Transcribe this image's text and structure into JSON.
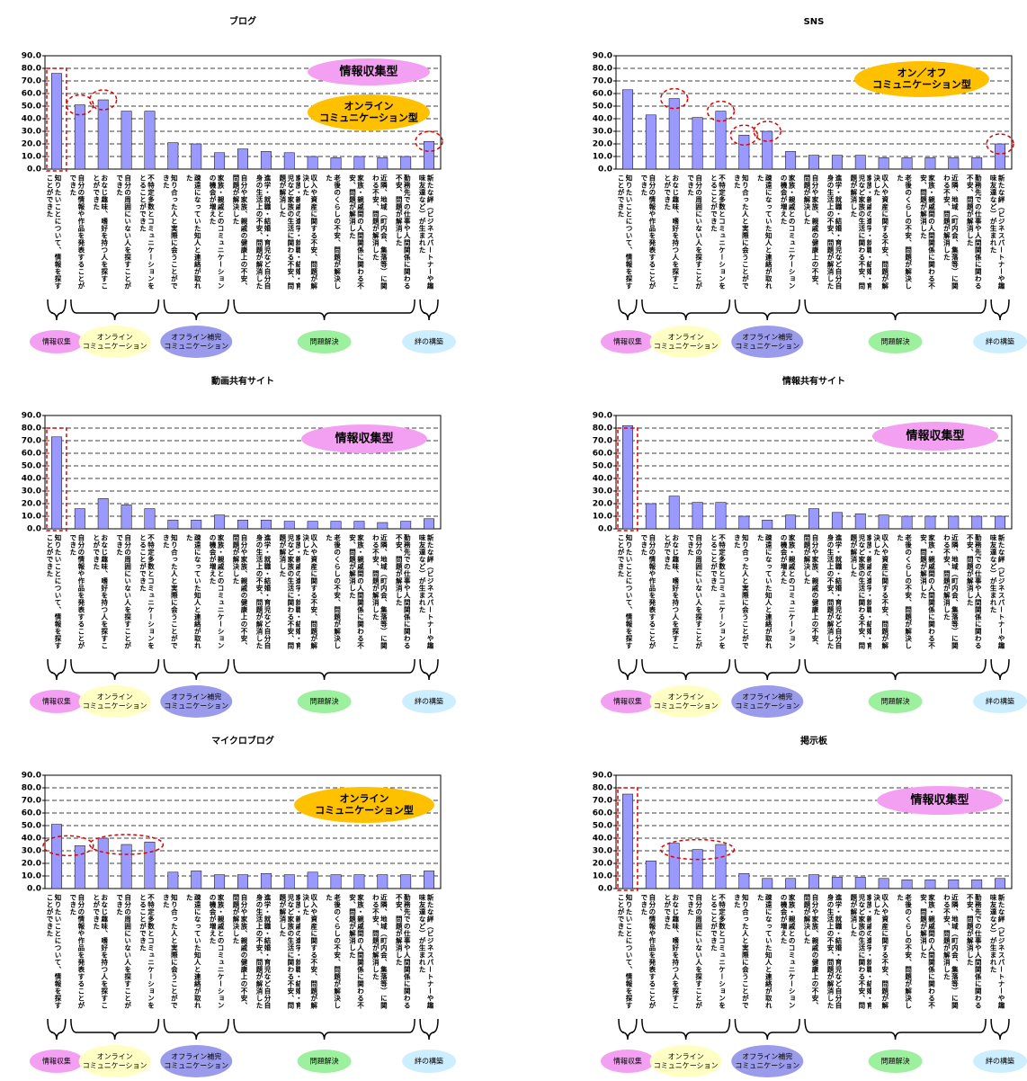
{
  "chart_data": [
    {
      "type": "bar",
      "title": "ブログ",
      "color": "#9999ff",
      "ylim": [
        0,
        90
      ],
      "grid": true,
      "yticks": [
        {
          "value": 0,
          "label": "0.0"
        },
        {
          "value": 10,
          "label": "10.0"
        },
        {
          "value": 20,
          "label": "20.0"
        },
        {
          "value": 30,
          "label": "30.0"
        },
        {
          "value": 40,
          "label": "40.0"
        },
        {
          "value": 50,
          "label": "50.0"
        },
        {
          "value": 60,
          "label": "60.0"
        },
        {
          "value": 70,
          "label": "70.0"
        },
        {
          "value": 80,
          "label": "80.0"
        },
        {
          "value": 90,
          "label": "90.0"
        }
      ],
      "categories": [
        "知りたいことについて、情報を探すことができた",
        "自分の情報や作品を発表することができた",
        "おなじ趣味、嗜好を持つ人を探すことができた",
        "自分の周囲にいない人を探すことができた",
        "不特定多数とコミュニケーションをとることができた",
        "知り合った人と実際に会うことができた",
        "疎遠になっていた知人と連絡が取れた",
        "家族・親戚とのコミュニケーションの機会が増えた",
        "自分や家族、親戚の健康上の不安、問題が解決した",
        "進学・就職・結婚・育児など自分自身の生活上の不安、問題が解消した",
        "家族・親戚の進学・就職・結婚・育児など家族の生活に関わる不安、問題が解消した",
        "収入や資産に関する不安、問題が解決した",
        "老後のくらしの不安、問題が解決した",
        "家族・親戚間の人間関係に関わる不安、問題が解消した",
        "近隣、地域（町内会、集落等）に関わる不安、問題が解消した",
        "勤務先での仕事や人間関係に関わる不安、問題が解消した",
        "新たな絆（ビジネスパートナーや趣味友達など）が生まれた"
      ],
      "values": [
        76,
        51,
        55,
        46,
        46,
        21,
        20,
        13,
        16,
        14,
        13,
        10,
        9,
        10,
        9,
        10,
        22
      ],
      "annotations": [
        {
          "text": [
            "情報収集型"
          ],
          "color": "#f4a0f2"
        },
        {
          "text": [
            "オンライン",
            "コミュニケーション型"
          ],
          "color": "#ffc000"
        }
      ],
      "groups": [
        {
          "label": [
            "情報収集"
          ],
          "color": "#f4a0f2"
        },
        {
          "label": [
            "オンライン",
            "コミュニケーション"
          ],
          "color": "#ffffc4"
        },
        {
          "label": [
            "オフライン補完",
            "コミュニケーション"
          ],
          "color": "#9b9bec"
        },
        {
          "label": [
            "問題解決"
          ],
          "color": "#9df09d"
        },
        {
          "label": [
            "絆の構築"
          ],
          "color": "#cdeeff"
        }
      ]
    },
    {
      "type": "bar",
      "title": "SNS",
      "color": "#9999ff",
      "ylim": [
        0,
        90
      ],
      "grid": true,
      "yticks": [
        {
          "value": 0,
          "label": "0.0"
        },
        {
          "value": 10,
          "label": "10.0"
        },
        {
          "value": 20,
          "label": "20.0"
        },
        {
          "value": 30,
          "label": "30.0"
        },
        {
          "value": 40,
          "label": "40.0"
        },
        {
          "value": 50,
          "label": "50.0"
        },
        {
          "value": 60,
          "label": "60.0"
        },
        {
          "value": 70,
          "label": "70.0"
        },
        {
          "value": 80,
          "label": "80.0"
        },
        {
          "value": 90,
          "label": "90.0"
        }
      ],
      "categories": [
        "知りたいことについて、情報を探すことができた",
        "自分の情報や作品を発表することができた",
        "おなじ趣味、嗜好を持つ人を探すことができた",
        "自分の周囲にいない人を探すことができた",
        "不特定多数とコミュニケーションをとることができた",
        "知り合った人と実際に会うことができた",
        "疎遠になっていた知人と連絡が取れた",
        "家族・親戚とのコミュニケーションの機会が増えた",
        "自分や家族、親戚の健康上の不安、問題が解決した",
        "進学・就職・結婚・育児など自分自身の生活上の不安、問題が解消した",
        "家族・親戚の進学・就職・結婚・育児など家族の生活に関わる不安、問題が解消した",
        "収入や資産に関する不安、問題が解決した",
        "老後のくらしの不安、問題が解決した",
        "家族・親戚間の人間関係に関わる不安、問題が解消した",
        "近隣、地域（町内会、集落等）に関わる不安、問題が解消した",
        "勤務先での仕事や人間関係に関わる不安、問題が解消した",
        "新たな絆（ビジネスパートナーや趣味友達など）が生まれた"
      ],
      "values": [
        63,
        43,
        56,
        41,
        46,
        27,
        30,
        14,
        11,
        11,
        11,
        9,
        9,
        9,
        9,
        9,
        20
      ],
      "annotations": [
        {
          "text": [
            "オン／オフ",
            "コミュニケーション型"
          ],
          "color": "#ffc000"
        }
      ],
      "groups": [
        {
          "label": [
            "情報収集"
          ],
          "color": "#f4a0f2"
        },
        {
          "label": [
            "オンライン",
            "コミュニケーション"
          ],
          "color": "#ffffc4"
        },
        {
          "label": [
            "オフライン補完",
            "コミュニケーション"
          ],
          "color": "#9b9bec"
        },
        {
          "label": [
            "問題解決"
          ],
          "color": "#9df09d"
        },
        {
          "label": [
            "絆の構築"
          ],
          "color": "#cdeeff"
        }
      ]
    },
    {
      "type": "bar",
      "title": "動画共有サイト",
      "color": "#9999ff",
      "ylim": [
        0,
        90
      ],
      "grid": true,
      "yticks": [
        {
          "value": 0,
          "label": "0.0"
        },
        {
          "value": 10,
          "label": "10.0"
        },
        {
          "value": 20,
          "label": "20.0"
        },
        {
          "value": 30,
          "label": "30.0"
        },
        {
          "value": 40,
          "label": "40.0"
        },
        {
          "value": 50,
          "label": "50.0"
        },
        {
          "value": 60,
          "label": "60.0"
        },
        {
          "value": 70,
          "label": "70.0"
        },
        {
          "value": 80,
          "label": "80.0"
        },
        {
          "value": 90,
          "label": "90.0"
        }
      ],
      "categories": [
        "知りたいことについて、情報を探すことができた",
        "自分の情報や作品を発表することができた",
        "おなじ趣味、嗜好を持つ人を探すことができた",
        "自分の周囲にいない人を探すことができた",
        "不特定多数とコミュニケーションをとることができた",
        "知り合った人と実際に会うことができた",
        "疎遠になっていた知人と連絡が取れた",
        "家族・親戚とのコミュニケーションの機会が増えた",
        "自分や家族、親戚の健康上の不安、問題が解決した",
        "進学・就職・結婚・育児など自分自身の生活上の不安、問題が解消した",
        "家族・親戚の進学・就職・結婚・育児など家族の生活に関わる不安、問題が解消した",
        "収入や資産に関する不安、問題が解決した",
        "老後のくらしの不安、問題が解決した",
        "家族・親戚間の人間関係に関わる不安、問題が解消した",
        "近隣、地域（町内会、集落等）に関わる不安、問題が解消した",
        "勤務先での仕事や人間関係に関わる不安、問題が解消した",
        "新たな絆（ビジネスパートナーや趣味友達など）が生まれた"
      ],
      "values": [
        73,
        16,
        24,
        19,
        16,
        7,
        7,
        11,
        7,
        7,
        6,
        6,
        6,
        6,
        5,
        6,
        8
      ],
      "annotations": [
        {
          "text": [
            "情報収集型"
          ],
          "color": "#f4a0f2"
        }
      ],
      "groups": [
        {
          "label": [
            "情報収集"
          ],
          "color": "#f4a0f2"
        },
        {
          "label": [
            "オンライン",
            "コミュニケーション"
          ],
          "color": "#ffffc4"
        },
        {
          "label": [
            "オフライン補完",
            "コミュニケーション"
          ],
          "color": "#9b9bec"
        },
        {
          "label": [
            "問題解決"
          ],
          "color": "#9df09d"
        },
        {
          "label": [
            "絆の構築"
          ],
          "color": "#cdeeff"
        }
      ]
    },
    {
      "type": "bar",
      "title": "情報共有サイト",
      "color": "#9999ff",
      "ylim": [
        0,
        90
      ],
      "grid": true,
      "yticks": [
        {
          "value": 0,
          "label": "0.0"
        },
        {
          "value": 10,
          "label": "10.0"
        },
        {
          "value": 20,
          "label": "20.0"
        },
        {
          "value": 30,
          "label": "30.0"
        },
        {
          "value": 40,
          "label": "40.0"
        },
        {
          "value": 50,
          "label": "50.0"
        },
        {
          "value": 60,
          "label": "60.0"
        },
        {
          "value": 70,
          "label": "70.0"
        },
        {
          "value": 80,
          "label": "80.0"
        },
        {
          "value": 90,
          "label": "90.0"
        }
      ],
      "categories": [
        "知りたいことについて、情報を探すことができた",
        "自分の情報や作品を発表することができた",
        "おなじ趣味、嗜好を持つ人を探すことができた",
        "自分の周囲にいない人を探すことができた",
        "不特定多数とコミュニケーションをとることができた",
        "知り合った人と実際に会うことができた",
        "疎遠になっていた知人と連絡が取れた",
        "家族・親戚とのコミュニケーションの機会が増えた",
        "自分や家族、親戚の健康上の不安、問題が解決した",
        "進学・就職・結婚・育児など自分自身の生活上の不安、問題が解消した",
        "家族・親戚の進学・就職・結婚・育児など家族の生活に関わる不安、問題が解消した",
        "収入や資産に関する不安、問題が解決した",
        "老後のくらしの不安、問題が解決した",
        "家族・親戚間の人間関係に関わる不安、問題が解消した",
        "近隣、地域（町内会、集落等）に関わる不安、問題が解消した",
        "勤務先での仕事や人間関係に関わる不安、問題が解消した",
        "新たな絆（ビジネスパートナーや趣味友達など）が生まれた"
      ],
      "values": [
        82,
        20,
        26,
        21,
        21,
        10,
        7,
        11,
        16,
        13,
        12,
        11,
        10,
        10,
        10,
        10,
        10
      ],
      "annotations": [
        {
          "text": [
            "情報収集型"
          ],
          "color": "#f4a0f2"
        }
      ],
      "groups": [
        {
          "label": [
            "情報収集"
          ],
          "color": "#f4a0f2"
        },
        {
          "label": [
            "オンライン",
            "コミュニケーション"
          ],
          "color": "#ffffc4"
        },
        {
          "label": [
            "オフライン補完",
            "コミュニケーション"
          ],
          "color": "#9b9bec"
        },
        {
          "label": [
            "問題解決"
          ],
          "color": "#9df09d"
        },
        {
          "label": [
            "絆の構築"
          ],
          "color": "#cdeeff"
        }
      ]
    },
    {
      "type": "bar",
      "title": "マイクロブログ",
      "color": "#9999ff",
      "ylim": [
        0,
        90
      ],
      "grid": true,
      "yticks": [
        {
          "value": 0,
          "label": "0.0"
        },
        {
          "value": 10,
          "label": "10.0"
        },
        {
          "value": 20,
          "label": "20.0"
        },
        {
          "value": 30,
          "label": "30.0"
        },
        {
          "value": 40,
          "label": "40.0"
        },
        {
          "value": 50,
          "label": "50.0"
        },
        {
          "value": 60,
          "label": "60.0"
        },
        {
          "value": 70,
          "label": "70.0"
        },
        {
          "value": 80,
          "label": "80.0"
        },
        {
          "value": 90,
          "label": "90.0"
        }
      ],
      "categories": [
        "知りたいことについて、情報を探すことができた",
        "自分の情報や作品を発表することができた",
        "おなじ趣味、嗜好を持つ人を探すことができた",
        "自分の周囲にいない人を探すことができた",
        "不特定多数とコミュニケーションをとることができた",
        "知り合った人と実際に会うことができた",
        "疎遠になっていた知人と連絡が取れた",
        "家族・親戚とのコミュニケーションの機会が増えた",
        "自分や家族、親戚の健康上の不安、問題が解決した",
        "進学・就職・結婚・育児など自分自身の生活上の不安、問題が解消した",
        "家族・親戚の進学・就職・結婚・育児など家族の生活に関わる不安、問題が解消した",
        "収入や資産に関する不安、問題が解決した",
        "老後のくらしの不安、問題が解決した",
        "家族・親戚間の人間関係に関わる不安、問題が解消した",
        "近隣、地域（町内会、集落等）に関わる不安、問題が解消した",
        "勤務先での仕事や人間関係に関わる不安、問題が解消した",
        "新たな絆（ビジネスパートナーや趣味友達など）が生まれた"
      ],
      "values": [
        51,
        34,
        40,
        35,
        37,
        13,
        14,
        11,
        11,
        12,
        11,
        13,
        11,
        11,
        11,
        11,
        14
      ],
      "annotations": [
        {
          "text": [
            "オンライン",
            "コミュニケーション型"
          ],
          "color": "#ffc000"
        }
      ],
      "groups": [
        {
          "label": [
            "情報収集"
          ],
          "color": "#f4a0f2"
        },
        {
          "label": [
            "オンライン",
            "コミュニケーション"
          ],
          "color": "#ffffc4"
        },
        {
          "label": [
            "オフライン補完",
            "コミュニケーション"
          ],
          "color": "#9b9bec"
        },
        {
          "label": [
            "問題解決"
          ],
          "color": "#9df09d"
        },
        {
          "label": [
            "絆の構築"
          ],
          "color": "#cdeeff"
        }
      ]
    },
    {
      "type": "bar",
      "title": "掲示板",
      "color": "#9999ff",
      "ylim": [
        0,
        90
      ],
      "grid": true,
      "yticks": [
        {
          "value": 0,
          "label": "0.0"
        },
        {
          "value": 10,
          "label": "10.0"
        },
        {
          "value": 20,
          "label": "20.0"
        },
        {
          "value": 30,
          "label": "30.0"
        },
        {
          "value": 40,
          "label": "40.0"
        },
        {
          "value": 50,
          "label": "50.0"
        },
        {
          "value": 60,
          "label": "60.0"
        },
        {
          "value": 70,
          "label": "70.0"
        },
        {
          "value": 80,
          "label": "80.0"
        },
        {
          "value": 90,
          "label": "90.0"
        }
      ],
      "categories": [
        "知りたいことについて、情報を探すことができた",
        "自分の情報や作品を発表することができた",
        "おなじ趣味、嗜好を持つ人を探すことができた",
        "自分の周囲にいない人を探すことができた",
        "不特定多数とコミュニケーションをとることができた",
        "知り合った人と実際に会うことができた",
        "疎遠になっていた知人と連絡が取れた",
        "家族・親戚とのコミュニケーションの機会が増えた",
        "自分や家族、親戚の健康上の不安、問題が解決した",
        "進学・就職・結婚・育児など自分自身の生活上の不安、問題が解消した",
        "家族・親戚の進学・就職・結婚・育児など家族の生活に関わる不安、問題が解消した",
        "収入や資産に関する不安、問題が解決した",
        "老後のくらしの不安、問題が解決した",
        "家族・親戚間の人間関係に関わる不安、問題が解消した",
        "近隣、地域（町内会、集落等）に関わる不安、問題が解消した",
        "勤務先での仕事や人間関係に関わる不安、問題が解消した",
        "新たな絆（ビジネスパートナーや趣味友達など）が生まれた"
      ],
      "values": [
        75,
        22,
        36,
        31,
        35,
        12,
        8,
        8,
        11,
        9,
        9,
        8,
        7,
        7,
        7,
        7,
        8
      ],
      "annotations": [
        {
          "text": [
            "情報収集型"
          ],
          "color": "#f4a0f2"
        }
      ],
      "groups": [
        {
          "label": [
            "情報収集"
          ],
          "color": "#f4a0f2"
        },
        {
          "label": [
            "オンライン",
            "コミュニケーション"
          ],
          "color": "#ffffc4"
        },
        {
          "label": [
            "オフライン補完",
            "コミュニケーション"
          ],
          "color": "#9b9bec"
        },
        {
          "label": [
            "問題解決"
          ],
          "color": "#9df09d"
        },
        {
          "label": [
            "絆の構築"
          ],
          "color": "#cdeeff"
        }
      ]
    }
  ]
}
